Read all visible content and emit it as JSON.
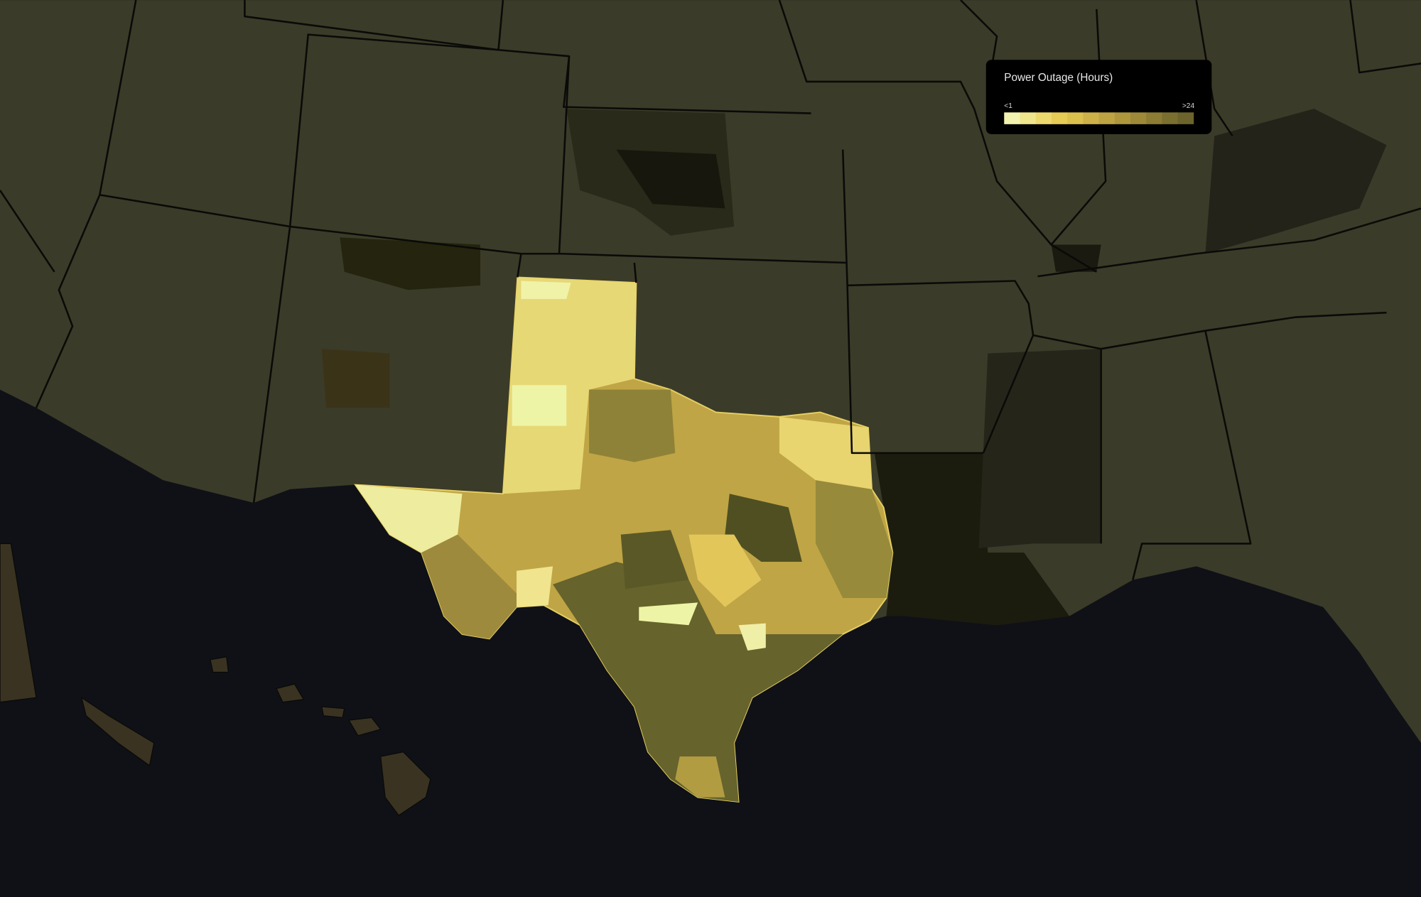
{
  "legend": {
    "title": "Power Outage (Hours)",
    "min_label": "<1",
    "max_label": ">24",
    "colors": [
      "#f3f3b0",
      "#efe68c",
      "#ecd96e",
      "#e6cb55",
      "#dcc04e",
      "#cdb148",
      "#bea342",
      "#ae963d",
      "#9e8938",
      "#8c7c34",
      "#7b6f30",
      "#6c642c"
    ]
  }
}
